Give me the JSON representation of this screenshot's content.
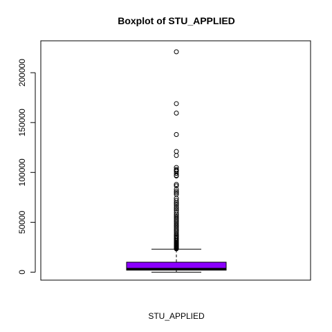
{
  "chart_data": {
    "type": "boxplot",
    "title": "Boxplot of STU_APPLIED",
    "xlabel": "STU_APPLIED",
    "ylabel": "",
    "ylim": [
      -8000,
      232000
    ],
    "yticks": [
      0,
      50000,
      100000,
      150000,
      200000
    ],
    "ytick_labels": [
      "0",
      "50000",
      "100000",
      "150000",
      "200000"
    ],
    "box": {
      "min": 0,
      "q1": 2000,
      "median": 3200,
      "q3": 10000,
      "whisker_high": 23000,
      "fill_color": "#8B00FF",
      "median_color": "#000000"
    },
    "outliers": [
      221000,
      169000,
      159500,
      138000,
      121000,
      117000,
      105000,
      103000,
      102000,
      101000,
      99000,
      97000,
      96500,
      88000,
      86500,
      83000,
      81000,
      79500,
      78000,
      74000,
      72000,
      70000,
      68500,
      67000,
      65000,
      63500,
      62000,
      60000,
      58000,
      56500,
      55000,
      53500,
      52000,
      50500,
      49000,
      47500,
      46000,
      44500,
      43000,
      41500,
      40000,
      38500,
      37000,
      36000,
      35000,
      34000,
      33000,
      32000,
      31000,
      30000,
      29200,
      28500,
      27800,
      27100,
      26500,
      25900,
      25300,
      24800,
      24300,
      23800,
      23400
    ],
    "grid": false,
    "legend": "none"
  }
}
